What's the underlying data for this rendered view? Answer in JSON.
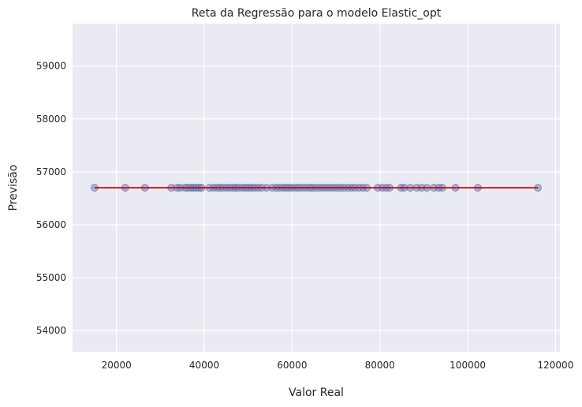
{
  "chart_data": {
    "type": "scatter",
    "title": "Reta da Regressão para o modelo Elastic_opt",
    "xlabel": "Valor Real",
    "ylabel": "Previsão",
    "xlim": [
      10000,
      121000
    ],
    "ylim": [
      53600,
      59800
    ],
    "xticks": [
      20000,
      40000,
      60000,
      80000,
      100000,
      120000
    ],
    "yticks": [
      54000,
      55000,
      56000,
      57000,
      58000,
      59000
    ],
    "grid": true,
    "colors": {
      "background": "#eaeaf2",
      "grid": "#ffffff",
      "points": "#4c72b0",
      "line": "#e0000b"
    },
    "regression_line": {
      "x": [
        15000,
        116000
      ],
      "y": [
        56700,
        56700
      ]
    },
    "points_y": 56700,
    "points_x": [
      15000,
      22000,
      26500,
      32500,
      33800,
      34500,
      35600,
      36200,
      36900,
      37500,
      38100,
      38800,
      39400,
      41200,
      42100,
      42900,
      43600,
      44300,
      45100,
      45800,
      46600,
      47200,
      47900,
      48700,
      49400,
      50100,
      50800,
      51500,
      52300,
      53100,
      54200,
      55500,
      56400,
      57100,
      57900,
      58600,
      59300,
      60000,
      60800,
      61500,
      62300,
      63100,
      63900,
      64600,
      65400,
      66200,
      67000,
      67800,
      68600,
      69400,
      70200,
      71000,
      71800,
      72700,
      73500,
      74300,
      75200,
      76100,
      77000,
      79500,
      80500,
      81400,
      82200,
      84800,
      85500,
      86900,
      88400,
      89500,
      90700,
      92300,
      93400,
      94200,
      97200,
      102300,
      116000
    ]
  }
}
